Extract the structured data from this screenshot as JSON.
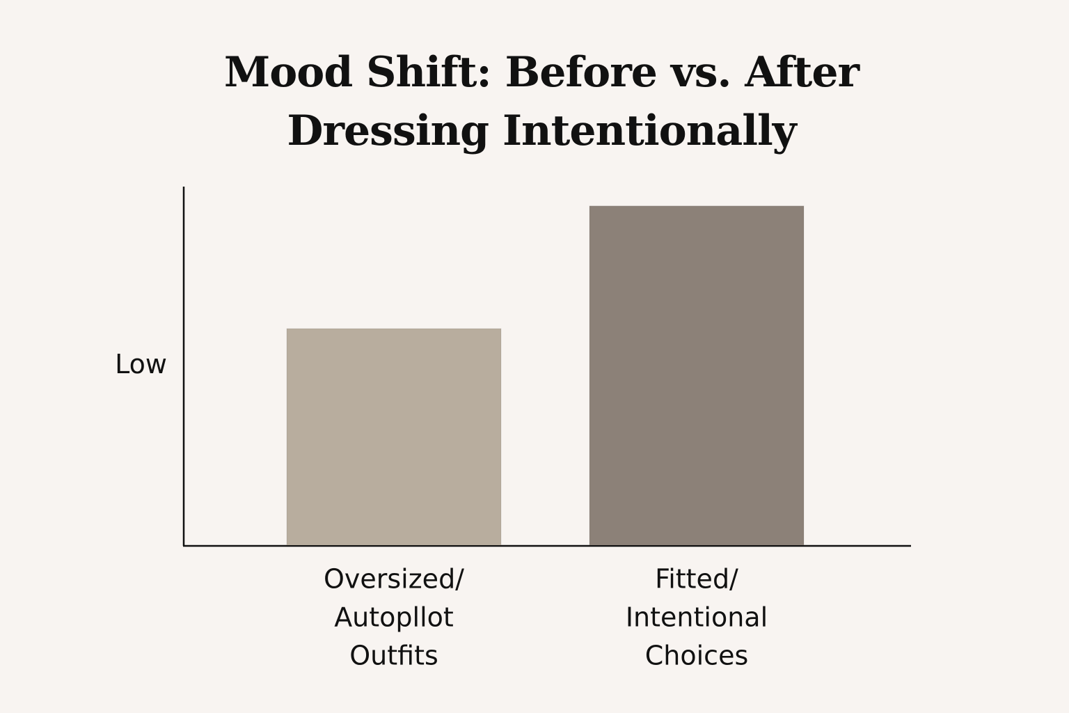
{
  "chart_data": {
    "type": "bar",
    "title": "Mood Shift: Before vs. After Dressing Intentionally",
    "categories": [
      [
        "Oversized/",
        "Autopllot",
        "Outfits"
      ],
      [
        "Fitted/",
        "Intentional",
        "Choices"
      ]
    ],
    "values": [
      60.4,
      94.6
    ],
    "colors": [
      "#b8ad9e",
      "#8c8178"
    ],
    "ylim": [
      0,
      100
    ],
    "yticks": [
      {
        "value": 50,
        "label": "Low"
      }
    ],
    "grid": false
  }
}
